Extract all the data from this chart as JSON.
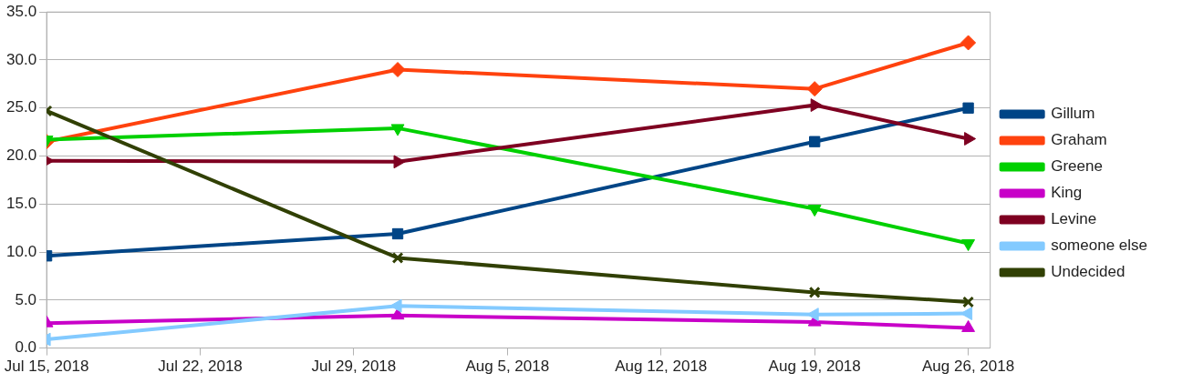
{
  "chart_data": {
    "type": "line",
    "x": [
      "2018-07-15",
      "2018-07-31",
      "2018-08-19",
      "2018-08-26"
    ],
    "series": [
      {
        "name": "Gillum",
        "color": "#004586",
        "marker": "square",
        "values": [
          9.6,
          11.9,
          21.5,
          25.0
        ]
      },
      {
        "name": "Graham",
        "color": "#ff420e",
        "marker": "diamond",
        "values": [
          21.5,
          29.0,
          27.0,
          31.8
        ]
      },
      {
        "name": "Greene",
        "color": "#00d000",
        "marker": "triangle",
        "values": [
          21.7,
          22.9,
          14.5,
          10.9
        ]
      },
      {
        "name": "King",
        "color": "#c800c8",
        "marker": "triangle",
        "values": [
          2.6,
          3.4,
          2.7,
          2.1
        ]
      },
      {
        "name": "Levine",
        "color": "#7e0021",
        "marker": "triangle",
        "values": [
          19.5,
          19.4,
          25.3,
          21.8
        ]
      },
      {
        "name": "someone else",
        "color": "#83caff",
        "marker": "triangle",
        "values": [
          0.9,
          4.4,
          3.5,
          3.6
        ]
      },
      {
        "name": "Undecided",
        "color": "#314004",
        "marker": "cross",
        "values": [
          24.7,
          9.4,
          5.8,
          4.8
        ]
      }
    ],
    "xlim": [
      "2018-07-15",
      "2018-08-27"
    ],
    "xticks": [
      {
        "value": "2018-07-15",
        "label": "Jul 15, 2018"
      },
      {
        "value": "2018-07-22",
        "label": "Jul 22, 2018"
      },
      {
        "value": "2018-07-29",
        "label": "Jul 29, 2018"
      },
      {
        "value": "2018-08-05",
        "label": "Aug 5, 2018"
      },
      {
        "value": "2018-08-12",
        "label": "Aug 12, 2018"
      },
      {
        "value": "2018-08-19",
        "label": "Aug 19, 2018"
      },
      {
        "value": "2018-08-26",
        "label": "Aug 26, 2018"
      }
    ],
    "ylim": [
      0,
      35
    ],
    "yticks": [
      {
        "value": 0,
        "label": "0.0"
      },
      {
        "value": 5,
        "label": "5.0"
      },
      {
        "value": 10,
        "label": "10.0"
      },
      {
        "value": 15,
        "label": "15.0"
      },
      {
        "value": 20,
        "label": "20.0"
      },
      {
        "value": 25,
        "label": "25.0"
      },
      {
        "value": 30,
        "label": "30.0"
      },
      {
        "value": 35,
        "label": "35.0"
      }
    ],
    "grid": "y",
    "legend": "right",
    "line_style": "solid"
  }
}
